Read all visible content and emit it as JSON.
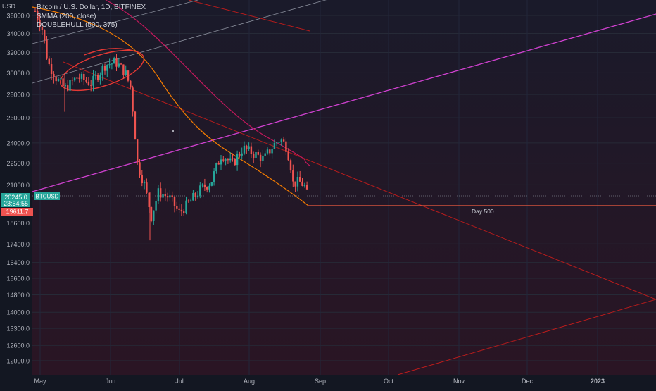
{
  "chart_data": {
    "type": "candlestick",
    "symbol_label": "BTCUSD",
    "axis_unit": "USD",
    "legend": [
      "Bitcoin / U.S. Dollar, 1D, BITFINEX",
      "SMMA (200, close)",
      "DOUBLEHULL (500, 375)"
    ],
    "y_ticks": [
      36000,
      34000,
      32000,
      30000,
      28000,
      26000,
      24000,
      22500,
      21000,
      18600,
      17400,
      16400,
      15600,
      14800,
      14000,
      13300,
      12600,
      12000
    ],
    "y_tick_labels": [
      "36000.0",
      "34000.0",
      "32000.0",
      "30000.0",
      "28000.0",
      "26000.0",
      "24000.0",
      "22500.0",
      "21000.0",
      "18600.0",
      "17400.0",
      "16400.0",
      "15600.0",
      "14800.0",
      "14000.0",
      "13300.0",
      "12600.0",
      "12000.0"
    ],
    "x_labels": [
      "May",
      "Jun",
      "Jul",
      "Aug",
      "Sep",
      "Oct",
      "Nov",
      "Dec",
      "2023"
    ],
    "price_tags": {
      "last_price": "20245.0",
      "countdown": "23:54:55",
      "hull_value": "19611.7"
    },
    "annotation": "Day 500",
    "colors": {
      "background": "#131722",
      "up": "#26a69a",
      "down": "#ef5350",
      "smma": "#c2185b",
      "hull": "#f57c00",
      "channel": "#d041d0",
      "trend": "#b71c1c"
    }
  }
}
